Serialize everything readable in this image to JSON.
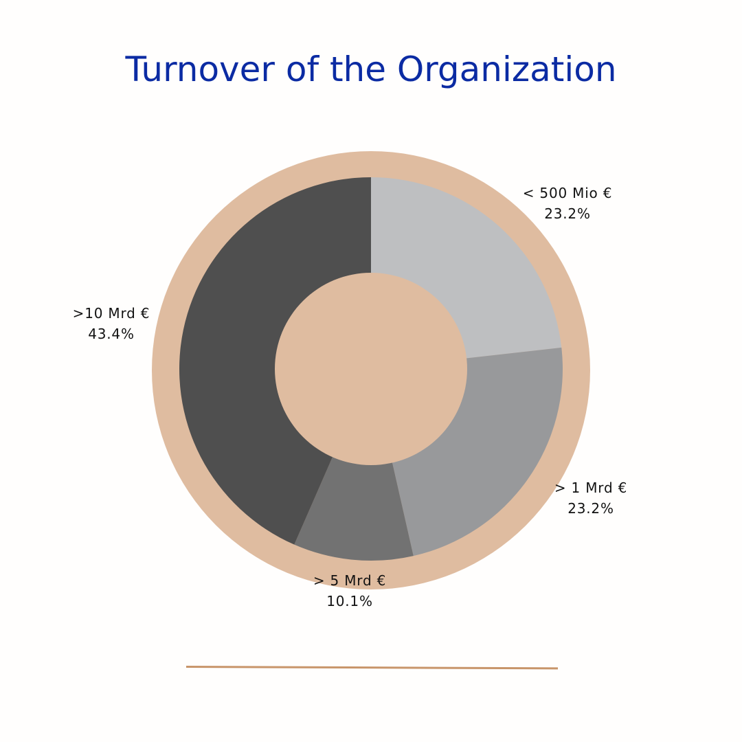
{
  "chart_data": {
    "type": "pie",
    "title": "Turnover of the Organization",
    "slices": [
      {
        "label": "< 500 Mio €",
        "value": 23.2,
        "value_label": "23.2%",
        "color": "#bebfc1"
      },
      {
        "label": "> 1 Mrd €",
        "value": 23.2,
        "value_label": "23.2%",
        "color": "#98999b"
      },
      {
        "label": "> 5 Mrd €",
        "value": 10.1,
        "value_label": "10.1%",
        "color": "#727272"
      },
      {
        "label": ">10 Mrd €",
        "value": 43.4,
        "value_label": "43.4%",
        "color": "#4f4f4f"
      }
    ],
    "ring_color": "#dfbca0",
    "legend": "none"
  },
  "colors": {
    "title": "#0b2ba3",
    "divider": "#c8956a",
    "background": "#fffefd"
  }
}
